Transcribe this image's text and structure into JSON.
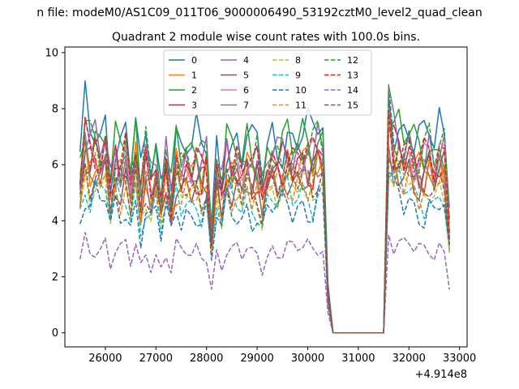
{
  "suptitle": "n file: modeM0/AS1C09_011T06_9000006490_53192cztM0_level2_quad_clean",
  "chart_data": {
    "type": "line",
    "title": "Quadrant 2 module wise count rates with 100.0s bins.",
    "xlabel": "",
    "ylabel": "",
    "x_offset_label": "+4.914e8",
    "xlim": [
      25200,
      33150
    ],
    "ylim": [
      -0.5,
      10.2
    ],
    "xticks": [
      26000,
      27000,
      28000,
      29000,
      30000,
      31000,
      32000,
      33000
    ],
    "xtick_labels": [
      "26000",
      "27000",
      "28000",
      "29000",
      "30000",
      "31000",
      "32000",
      "33000"
    ],
    "yticks": [
      0,
      2,
      4,
      6,
      8,
      10
    ],
    "ytick_labels": [
      "0",
      "2",
      "4",
      "6",
      "8",
      "10"
    ],
    "legend_position": "top-center",
    "legend_columns": 4,
    "x_start": 25500,
    "x_step": 100,
    "gap": {
      "from": 30400,
      "to": 31400,
      "value": 0
    },
    "base_profile": [
      5.3,
      6.8,
      6.2,
      6.5,
      6.1,
      6.6,
      5.0,
      6.0,
      5.7,
      6.2,
      5.1,
      6.4,
      4.7,
      6.0,
      5.2,
      5.8,
      4.6,
      5.9,
      4.6,
      6.1,
      5.6,
      5.9,
      5.6,
      5.9,
      5.6,
      6.0,
      3.3,
      5.8,
      4.9,
      6.1,
      5.7,
      5.9,
      5.5,
      6.1,
      5.6,
      5.8,
      4.9,
      5.8,
      6.1,
      5.9,
      6.0,
      6.2,
      5.9,
      6.1,
      6.2,
      6.1,
      6.0,
      6.5,
      6.3,
      1.4,
      0,
      0,
      0,
      0,
      0,
      0,
      0,
      0,
      0,
      0,
      0,
      7.6,
      6.6,
      6.5,
      6.2,
      6.5,
      6.0,
      5.8,
      5.9,
      6.3,
      5.7,
      6.3,
      6.2,
      3.7
    ],
    "series": [
      {
        "name": "0",
        "color": "#1f77b4",
        "dash": "solid",
        "scale": 1.15,
        "phase": 0
      },
      {
        "name": "1",
        "color": "#ff7f0e",
        "dash": "solid",
        "scale": 0.96,
        "phase": 1
      },
      {
        "name": "2",
        "color": "#2ca02c",
        "dash": "solid",
        "scale": 1.1,
        "phase": 2
      },
      {
        "name": "3",
        "color": "#d62728",
        "dash": "solid",
        "scale": 0.98,
        "phase": 3
      },
      {
        "name": "4",
        "color": "#9467bd",
        "dash": "solid",
        "scale": 1.05,
        "phase": 4
      },
      {
        "name": "5",
        "color": "#8c564b",
        "dash": "solid",
        "scale": 0.92,
        "phase": 5
      },
      {
        "name": "6",
        "color": "#e377c2",
        "dash": "solid",
        "scale": 1.0,
        "phase": 6
      },
      {
        "name": "7",
        "color": "#7f7f7f",
        "dash": "solid",
        "scale": 0.94,
        "phase": 7
      },
      {
        "name": "8",
        "color": "#bcbd22",
        "dash": "dashed",
        "scale": 0.85,
        "phase": 8
      },
      {
        "name": "9",
        "color": "#17becf",
        "dash": "dashed",
        "scale": 0.8,
        "phase": 9
      },
      {
        "name": "10",
        "color": "#1f77b4",
        "dash": "dashed",
        "scale": 0.74,
        "phase": 10
      },
      {
        "name": "11",
        "color": "#ff7f0e",
        "dash": "dashed",
        "scale": 0.88,
        "phase": 11
      },
      {
        "name": "12",
        "color": "#2ca02c",
        "dash": "dashed",
        "scale": 1.06,
        "phase": 12
      },
      {
        "name": "13",
        "color": "#d62728",
        "dash": "dashed",
        "scale": 1.02,
        "phase": 13
      },
      {
        "name": "14",
        "color": "#9467bd",
        "dash": "dashed",
        "scale": 0.49,
        "phase": 14
      },
      {
        "name": "15",
        "color": "#8c564b",
        "dash": "dashed",
        "scale": 0.9,
        "phase": 15
      }
    ]
  }
}
